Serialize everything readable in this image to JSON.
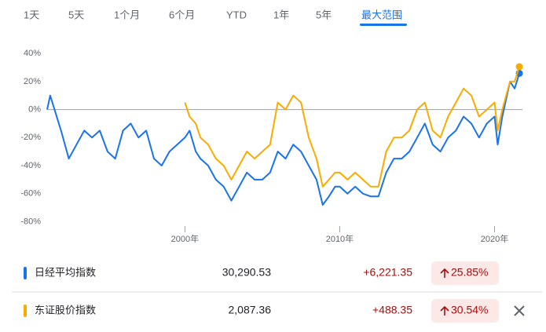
{
  "tabs": [
    "1天",
    "5天",
    "1个月",
    "6个月",
    "YTD",
    "1年",
    "5年",
    "最大范围"
  ],
  "selected_tab": 7,
  "chart_data": {
    "type": "line",
    "x": [
      1991.1,
      1991.3,
      1992,
      1992.5,
      1993,
      1993.5,
      1994,
      1994.5,
      1995,
      1995.5,
      1996,
      1996.5,
      1997,
      1997.5,
      1998,
      1998.5,
      1999,
      1999.5,
      2000,
      2000.3,
      2000.7,
      2001,
      2001.5,
      2002,
      2002.5,
      2003,
      2003.5,
      2004,
      2004.5,
      2005,
      2005.5,
      2006,
      2006.5,
      2007,
      2007.5,
      2008,
      2008.5,
      2008.9,
      2009.3,
      2009.7,
      2010,
      2010.5,
      2011,
      2011.5,
      2012,
      2012.5,
      2013,
      2013.5,
      2014,
      2014.5,
      2015,
      2015.5,
      2016,
      2016.5,
      2017,
      2017.5,
      2018,
      2018.5,
      2019,
      2019.5,
      2020,
      2020.2,
      2020.5,
      2021,
      2021.3,
      2021.6
    ],
    "series": [
      {
        "name": "日经平均指数",
        "color": "#1a73e8",
        "values": [
          0,
          10,
          -15,
          -35,
          -25,
          -15,
          -20,
          -15,
          -30,
          -35,
          -15,
          -10,
          -20,
          -15,
          -35,
          -40,
          -30,
          -25,
          -20,
          -15,
          -30,
          -35,
          -40,
          -50,
          -55,
          -65,
          -55,
          -45,
          -50,
          -50,
          -45,
          -30,
          -35,
          -25,
          -30,
          -40,
          -50,
          -68,
          -62,
          -55,
          -55,
          -60,
          -55,
          -60,
          -62,
          -62,
          -45,
          -35,
          -35,
          -30,
          -20,
          -10,
          -25,
          -30,
          -20,
          -15,
          -5,
          -10,
          -20,
          -10,
          -5,
          -25,
          -5,
          20,
          15,
          25.85
        ]
      },
      {
        "name": "东证股价指数",
        "color": "#f9ab00",
        "values": [
          null,
          null,
          null,
          null,
          null,
          null,
          null,
          null,
          null,
          null,
          null,
          null,
          null,
          null,
          null,
          null,
          null,
          null,
          5,
          -5,
          -10,
          -20,
          -25,
          -35,
          -40,
          -50,
          -40,
          -30,
          -35,
          -30,
          -25,
          5,
          0,
          10,
          5,
          -20,
          -35,
          -55,
          -50,
          -45,
          -45,
          -50,
          -45,
          -50,
          -55,
          -55,
          -30,
          -20,
          -20,
          -15,
          0,
          5,
          -15,
          -20,
          -5,
          5,
          15,
          10,
          -5,
          0,
          5,
          -15,
          0,
          20,
          20,
          30.54
        ]
      }
    ],
    "xlim": [
      1991.1,
      2021.8
    ],
    "xticks": [
      {
        "value": 2000,
        "label": "2000年"
      },
      {
        "value": 2010,
        "label": "2010年"
      },
      {
        "value": 2020,
        "label": "2020年"
      }
    ],
    "ylim": [
      -82,
      44
    ],
    "yticks": [
      {
        "value": 40,
        "label": "40%"
      },
      {
        "value": 20,
        "label": "20%"
      },
      {
        "value": 0,
        "label": "0%"
      },
      {
        "value": -20,
        "label": "-20%"
      },
      {
        "value": -40,
        "label": "-40%"
      },
      {
        "value": -60,
        "label": "-60%"
      },
      {
        "value": -80,
        "label": "-80%"
      }
    ],
    "reference_line": 0
  },
  "rows": [
    {
      "name": "日经平均指数",
      "price": "30,290.53",
      "change": "+6,221.35",
      "percent": "25.85%"
    },
    {
      "name": "东证股价指数",
      "price": "2,087.36",
      "change": "+488.35",
      "percent": "30.54%"
    }
  ]
}
